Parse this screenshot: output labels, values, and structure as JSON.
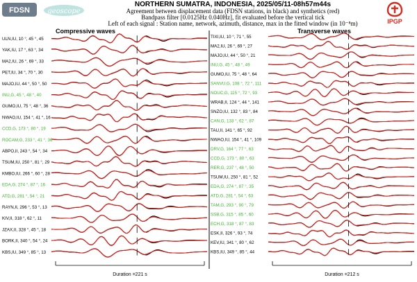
{
  "header": {
    "logo_left": "FDSN",
    "logo_mid": "geoscope",
    "logo_right": "IPGP",
    "title": "NORTHERN SUMATRA, INDONESIA, 2025/05/11-08h57m44s",
    "line2": "Agreement between displacement data (FDSN stations, in black) and synthetics (red)",
    "line3": "Bandpass filter [0.0125Hz 0.040Hz], fit evaluated before the vertical tick",
    "line4": "Left of each signal : Station name, network, azimuth, distance, max in the fitted window (in 10⁻⁸m)"
  },
  "colors": {
    "data": "#000000",
    "synthetic": "#e8201a",
    "highlight": "#3cb32c",
    "label": "#000000"
  },
  "chart_data": [
    {
      "type": "line",
      "title": "Compressive waves",
      "duration_label": "Duration =221 s",
      "traces": [
        {
          "station": "ULN",
          "network": "IU",
          "az": 10,
          "dist": 45,
          "max": 45,
          "green": false
        },
        {
          "station": "YAK",
          "network": "IU",
          "az": 17,
          "dist": 63,
          "max": 34,
          "green": false
        },
        {
          "station": "MA2",
          "network": "IU",
          "az": 26,
          "dist": 69,
          "max": 33,
          "green": false
        },
        {
          "station": "PET",
          "network": "IU",
          "az": 34,
          "dist": 70,
          "max": 30,
          "green": false
        },
        {
          "station": "MAJO",
          "network": "IU",
          "az": 44,
          "dist": 50,
          "max": 50,
          "green": false
        },
        {
          "station": "INU",
          "network": "G",
          "az": 45,
          "dist": 48,
          "max": 40,
          "green": true
        },
        {
          "station": "GUMO",
          "network": "IU",
          "az": 75,
          "dist": 48,
          "max": 36,
          "green": false
        },
        {
          "station": "NWAO",
          "network": "IU",
          "az": 154,
          "dist": 41,
          "max": 16,
          "green": false
        },
        {
          "station": "CCD",
          "network": "G",
          "az": 173,
          "dist": 80,
          "max": 19,
          "green": true
        },
        {
          "station": "ROCAM",
          "network": "G",
          "az": 233,
          "dist": 41,
          "max": 36,
          "green": true
        },
        {
          "station": "ABPO",
          "network": "II",
          "az": 243,
          "dist": 54,
          "max": 34,
          "green": false
        },
        {
          "station": "TSUM",
          "network": "IU",
          "az": 250,
          "dist": 81,
          "max": 29,
          "green": false
        },
        {
          "station": "KMBO",
          "network": "IU",
          "az": 266,
          "dist": 60,
          "max": 28,
          "green": false
        },
        {
          "station": "EDA",
          "network": "G",
          "az": 274,
          "dist": 87,
          "max": 16,
          "green": true
        },
        {
          "station": "ATD",
          "network": "G",
          "az": 281,
          "dist": 54,
          "max": 21,
          "green": true
        },
        {
          "station": "RAYN",
          "network": "II",
          "az": 296,
          "dist": 53,
          "max": 13,
          "green": false
        },
        {
          "station": "KIV",
          "network": "II",
          "az": 318,
          "dist": 62,
          "max": 11,
          "green": false
        },
        {
          "station": "JZAX",
          "network": "II",
          "az": 328,
          "dist": 45,
          "max": 18,
          "green": false
        },
        {
          "station": "BORK",
          "network": "II",
          "az": 340,
          "dist": 54,
          "max": 24,
          "green": false
        },
        {
          "station": "KBS",
          "network": "IU",
          "az": 349,
          "dist": 85,
          "max": 13,
          "green": false
        }
      ]
    },
    {
      "type": "line",
      "title": "Transverse waves",
      "duration_label": "Duration =212 s",
      "traces": [
        {
          "station": "TIXI",
          "network": "IU",
          "az": 10,
          "dist": 71,
          "max": 55,
          "green": false
        },
        {
          "station": "MA2",
          "network": "IU",
          "az": 26,
          "dist": 69,
          "max": 27,
          "green": false
        },
        {
          "station": "MAJO",
          "network": "IU",
          "az": 44,
          "dist": 50,
          "max": 21,
          "green": false
        },
        {
          "station": "INU",
          "network": "G",
          "az": 45,
          "dist": 48,
          "max": 49,
          "green": true
        },
        {
          "station": "GUMO",
          "network": "IU",
          "az": 75,
          "dist": 48,
          "max": 64,
          "green": false
        },
        {
          "station": "SANVU",
          "network": "G",
          "az": 108,
          "dist": 72,
          "max": 111,
          "green": true
        },
        {
          "station": "NOUC",
          "network": "G",
          "az": 115,
          "dist": 72,
          "max": 93,
          "green": true
        },
        {
          "station": "WRAB",
          "network": "II",
          "az": 124,
          "dist": 44,
          "max": 141,
          "green": false
        },
        {
          "station": "SNZO",
          "network": "IU",
          "az": 132,
          "dist": 83,
          "max": 84,
          "green": false
        },
        {
          "station": "CAN",
          "network": "G",
          "az": 133,
          "dist": 62,
          "max": 87,
          "green": true
        },
        {
          "station": "TAU",
          "network": "II",
          "az": 141,
          "dist": 65,
          "max": 92,
          "green": false
        },
        {
          "station": "NWAO",
          "network": "IU",
          "az": 154,
          "dist": 41,
          "max": 109,
          "green": false
        },
        {
          "station": "DRV",
          "network": "G",
          "az": 164,
          "dist": 77,
          "max": 63,
          "green": true
        },
        {
          "station": "CCD",
          "network": "G",
          "az": 173,
          "dist": 80,
          "max": 63,
          "green": true
        },
        {
          "station": "RER",
          "network": "G",
          "az": 237,
          "dist": 48,
          "max": 50,
          "green": true
        },
        {
          "station": "TSUM",
          "network": "IU",
          "az": 250,
          "dist": 81,
          "max": 52,
          "green": false
        },
        {
          "station": "EDA",
          "network": "G",
          "az": 274,
          "dist": 87,
          "max": 35,
          "green": true
        },
        {
          "station": "ATD",
          "network": "G",
          "az": 281,
          "dist": 54,
          "max": 63,
          "green": true
        },
        {
          "station": "TAM",
          "network": "G",
          "az": 293,
          "dist": 90,
          "max": 79,
          "green": true
        },
        {
          "station": "SSB",
          "network": "G",
          "az": 315,
          "dist": 85,
          "max": 60,
          "green": true
        },
        {
          "station": "ECH",
          "network": "G",
          "az": 318,
          "dist": 87,
          "max": 83,
          "green": true
        },
        {
          "station": "ESK",
          "network": "II",
          "az": 326,
          "dist": 93,
          "max": 74,
          "green": false
        },
        {
          "station": "KEV",
          "network": "IU",
          "az": 341,
          "dist": 80,
          "max": 62,
          "green": false
        },
        {
          "station": "KBS",
          "network": "IU",
          "az": 349,
          "dist": 85,
          "max": 44,
          "green": false
        }
      ]
    }
  ]
}
